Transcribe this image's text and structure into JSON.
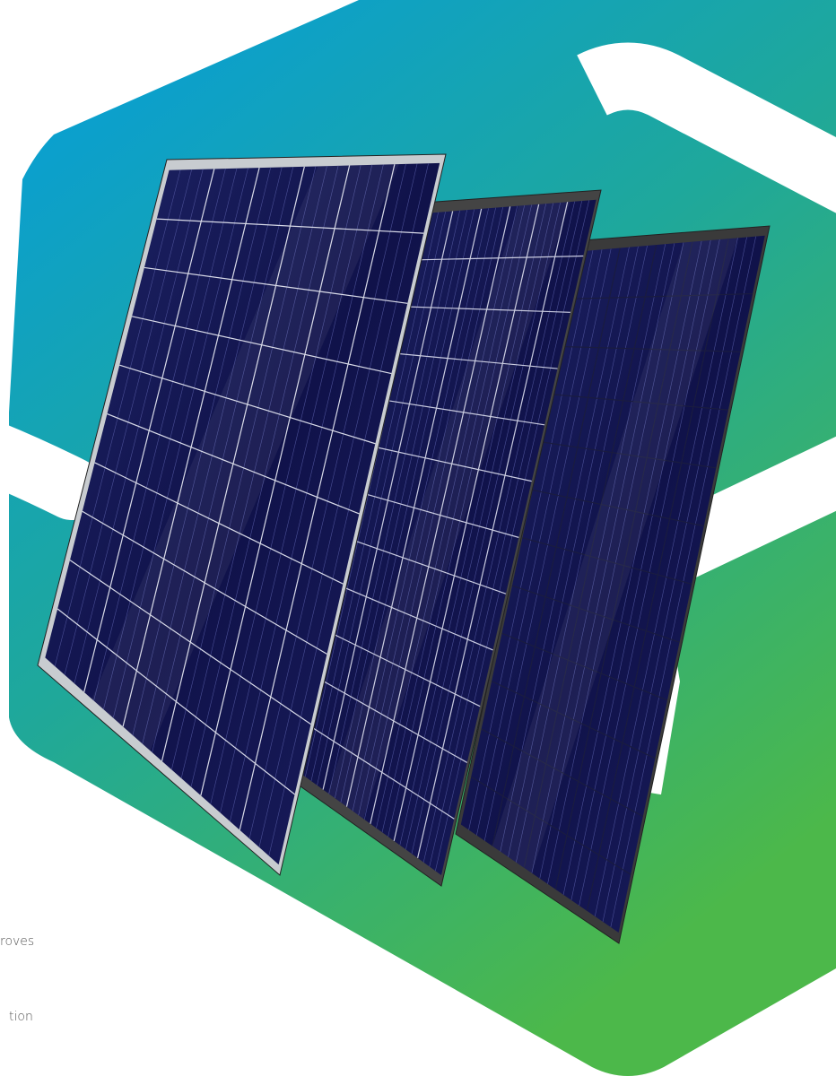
{
  "captions": [
    "roves",
    "tion"
  ]
}
